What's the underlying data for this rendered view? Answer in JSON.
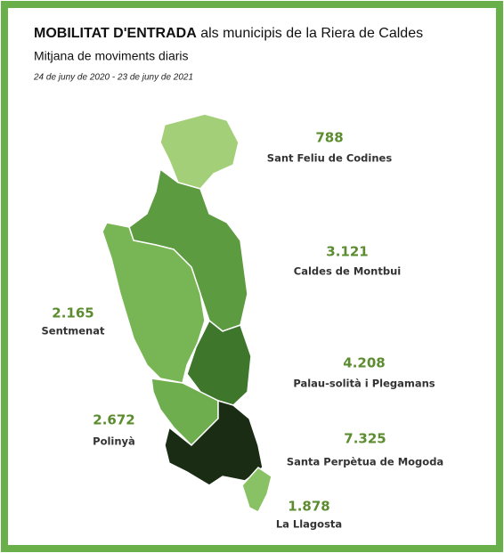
{
  "header": {
    "title_bold": "MOBILITAT D'ENTRADA",
    "title_rest": "als municipis de la Riera de Caldes",
    "subtitle": "Mitjana de moviments diaris",
    "period": "24 de juny de 2020 - 23 de juny de 2021"
  },
  "regions": [
    {
      "name": "Sant Feliu de Codines",
      "value": 788,
      "value_label": "788",
      "color": "#a3cf78"
    },
    {
      "name": "Caldes de Montbui",
      "value": 3121,
      "value_label": "3.121",
      "color": "#5c9b40"
    },
    {
      "name": "Sentmenat",
      "value": 2165,
      "value_label": "2.165",
      "color": "#78b655"
    },
    {
      "name": "Palau-solità i Plegamans",
      "value": 4208,
      "value_label": "4.208",
      "color": "#3e772b"
    },
    {
      "name": "Polinyà",
      "value": 2672,
      "value_label": "2.672",
      "color": "#6fae4e"
    },
    {
      "name": "Santa Perpètua de Mogoda",
      "value": 7325,
      "value_label": "7.325",
      "color": "#1a2c14"
    },
    {
      "name": "La Llagosta",
      "value": 1878,
      "value_label": "1.878",
      "color": "#88c265"
    }
  ]
}
